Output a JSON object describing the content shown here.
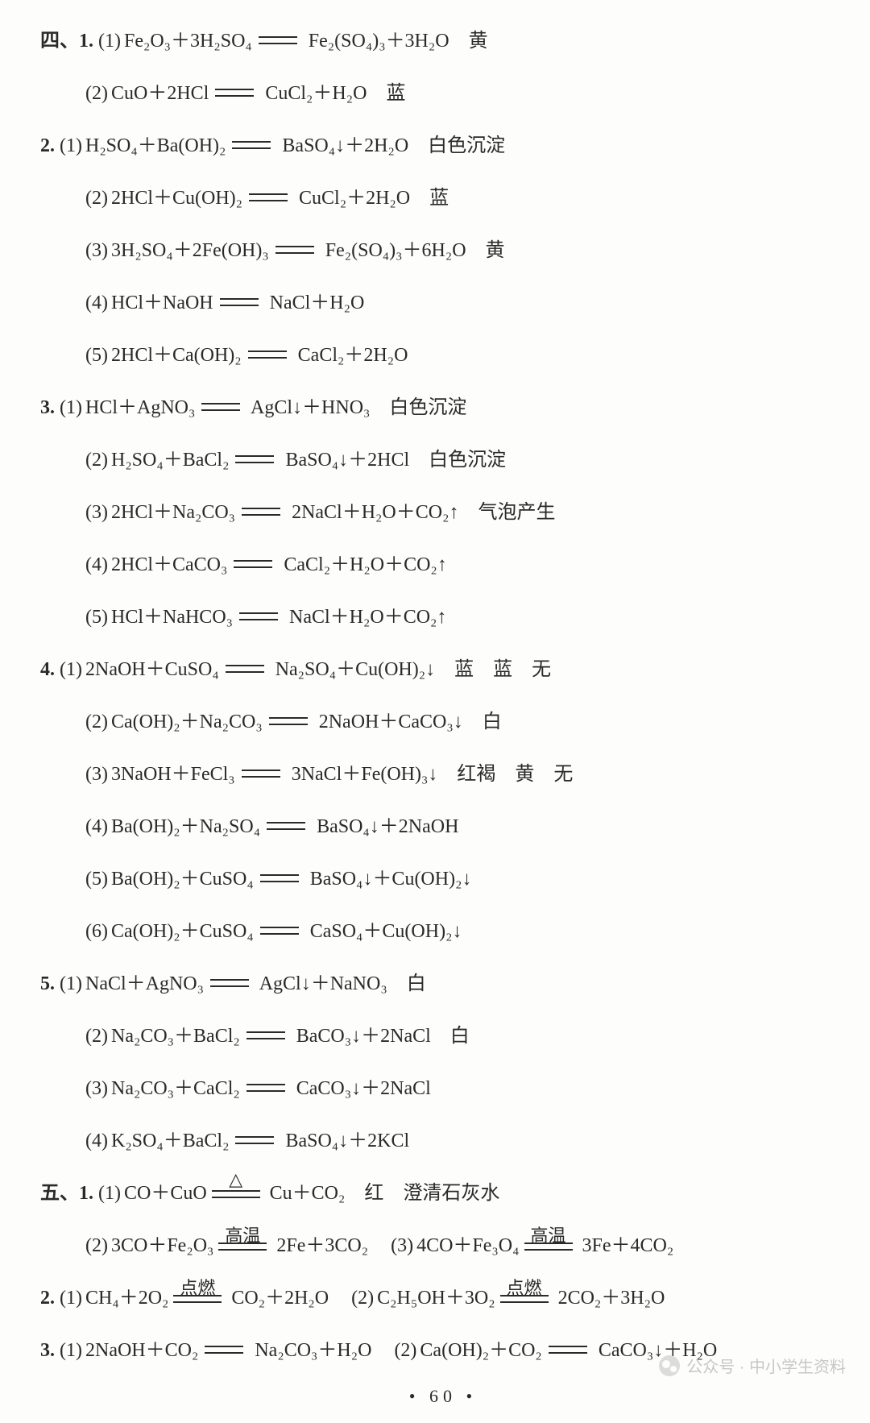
{
  "page_number": "60",
  "watermark": "公众号 · 中小学生资料",
  "sections": [
    {
      "heading": "四、",
      "problems": [
        {
          "num": "1.",
          "items": [
            {
              "idx": "(1)",
              "lhs": "Fe₂O₃＋3H₂SO₄",
              "rhs": "Fe₂(SO₄)₃＋3H₂O",
              "note": "黄"
            },
            {
              "idx": "(2)",
              "lhs": "CuO＋2HCl",
              "rhs": "CuCl₂＋H₂O",
              "note": "蓝"
            }
          ]
        },
        {
          "num": "2.",
          "items": [
            {
              "idx": "(1)",
              "lhs": "H₂SO₄＋Ba(OH)₂",
              "rhs": "BaSO₄↓＋2H₂O",
              "note": "白色沉淀"
            },
            {
              "idx": "(2)",
              "lhs": "2HCl＋Cu(OH)₂",
              "rhs": "CuCl₂＋2H₂O",
              "note": "蓝"
            },
            {
              "idx": "(3)",
              "lhs": "3H₂SO₄＋2Fe(OH)₃",
              "rhs": "Fe₂(SO₄)₃＋6H₂O",
              "note": "黄"
            },
            {
              "idx": "(4)",
              "lhs": "HCl＋NaOH",
              "rhs": "NaCl＋H₂O",
              "note": ""
            },
            {
              "idx": "(5)",
              "lhs": "2HCl＋Ca(OH)₂",
              "rhs": "CaCl₂＋2H₂O",
              "note": ""
            }
          ]
        },
        {
          "num": "3.",
          "items": [
            {
              "idx": "(1)",
              "lhs": "HCl＋AgNO₃",
              "rhs": "AgCl↓＋HNO₃",
              "note": "白色沉淀"
            },
            {
              "idx": "(2)",
              "lhs": "H₂SO₄＋BaCl₂",
              "rhs": "BaSO₄↓＋2HCl",
              "note": "白色沉淀"
            },
            {
              "idx": "(3)",
              "lhs": "2HCl＋Na₂CO₃",
              "rhs": "2NaCl＋H₂O＋CO₂↑",
              "note": "气泡产生"
            },
            {
              "idx": "(4)",
              "lhs": "2HCl＋CaCO₃",
              "rhs": "CaCl₂＋H₂O＋CO₂↑",
              "note": ""
            },
            {
              "idx": "(5)",
              "lhs": "HCl＋NaHCO₃",
              "rhs": "NaCl＋H₂O＋CO₂↑",
              "note": ""
            }
          ]
        },
        {
          "num": "4.",
          "items": [
            {
              "idx": "(1)",
              "lhs": "2NaOH＋CuSO₄",
              "rhs": "Na₂SO₄＋Cu(OH)₂↓",
              "note": "蓝　蓝　无"
            },
            {
              "idx": "(2)",
              "lhs": "Ca(OH)₂＋Na₂CO₃",
              "rhs": "2NaOH＋CaCO₃↓",
              "note": "白"
            },
            {
              "idx": "(3)",
              "lhs": "3NaOH＋FeCl₃",
              "rhs": "3NaCl＋Fe(OH)₃↓",
              "note": "红褐　黄　无"
            },
            {
              "idx": "(4)",
              "lhs": "Ba(OH)₂＋Na₂SO₄",
              "rhs": "BaSO₄↓＋2NaOH",
              "note": ""
            },
            {
              "idx": "(5)",
              "lhs": "Ba(OH)₂＋CuSO₄",
              "rhs": "BaSO₄↓＋Cu(OH)₂↓",
              "note": ""
            },
            {
              "idx": "(6)",
              "lhs": "Ca(OH)₂＋CuSO₄",
              "rhs": "CaSO₄＋Cu(OH)₂↓",
              "note": ""
            }
          ]
        },
        {
          "num": "5.",
          "items": [
            {
              "idx": "(1)",
              "lhs": "NaCl＋AgNO₃",
              "rhs": "AgCl↓＋NaNO₃",
              "note": "白"
            },
            {
              "idx": "(2)",
              "lhs": "Na₂CO₃＋BaCl₂",
              "rhs": "BaCO₃↓＋2NaCl",
              "note": "白"
            },
            {
              "idx": "(3)",
              "lhs": "Na₂CO₃＋CaCl₂",
              "rhs": "CaCO₃↓＋2NaCl",
              "note": ""
            },
            {
              "idx": "(4)",
              "lhs": "K₂SO₄＋BaCl₂",
              "rhs": "BaSO₄↓＋2KCl",
              "note": ""
            }
          ]
        }
      ]
    },
    {
      "heading": "五、",
      "problems": [
        {
          "num": "1.",
          "mixed": true,
          "lines": [
            {
              "parts": [
                {
                  "idx": "(1)",
                  "lhs": "CO＋CuO",
                  "cond": "△",
                  "rhs": "Cu＋CO₂",
                  "note": "红　澄清石灰水"
                }
              ]
            },
            {
              "parts": [
                {
                  "idx": "(2)",
                  "lhs": "3CO＋Fe₂O₃",
                  "cond": "高温",
                  "rhs": "2Fe＋3CO₂",
                  "note": ""
                },
                {
                  "idx": "(3)",
                  "lhs": "4CO＋Fe₃O₄",
                  "cond": "高温",
                  "rhs": "3Fe＋4CO₂",
                  "note": ""
                }
              ]
            }
          ]
        },
        {
          "num": "2.",
          "mixed": true,
          "lines": [
            {
              "parts": [
                {
                  "idx": "(1)",
                  "lhs": "CH₄＋2O₂",
                  "cond": "点燃",
                  "rhs": "CO₂＋2H₂O",
                  "note": ""
                },
                {
                  "idx": "(2)",
                  "lhs": "C₂H₅OH＋3O₂",
                  "cond": "点燃",
                  "rhs": "2CO₂＋3H₂O",
                  "note": ""
                }
              ]
            }
          ]
        },
        {
          "num": "3.",
          "mixed": true,
          "lines": [
            {
              "parts": [
                {
                  "idx": "(1)",
                  "lhs": "2NaOH＋CO₂",
                  "rhs": "Na₂CO₃＋H₂O",
                  "note": ""
                },
                {
                  "idx": "(2)",
                  "lhs": "Ca(OH)₂＋CO₂",
                  "rhs": "CaCO₃↓＋H₂O",
                  "note": ""
                }
              ]
            }
          ]
        }
      ]
    }
  ]
}
